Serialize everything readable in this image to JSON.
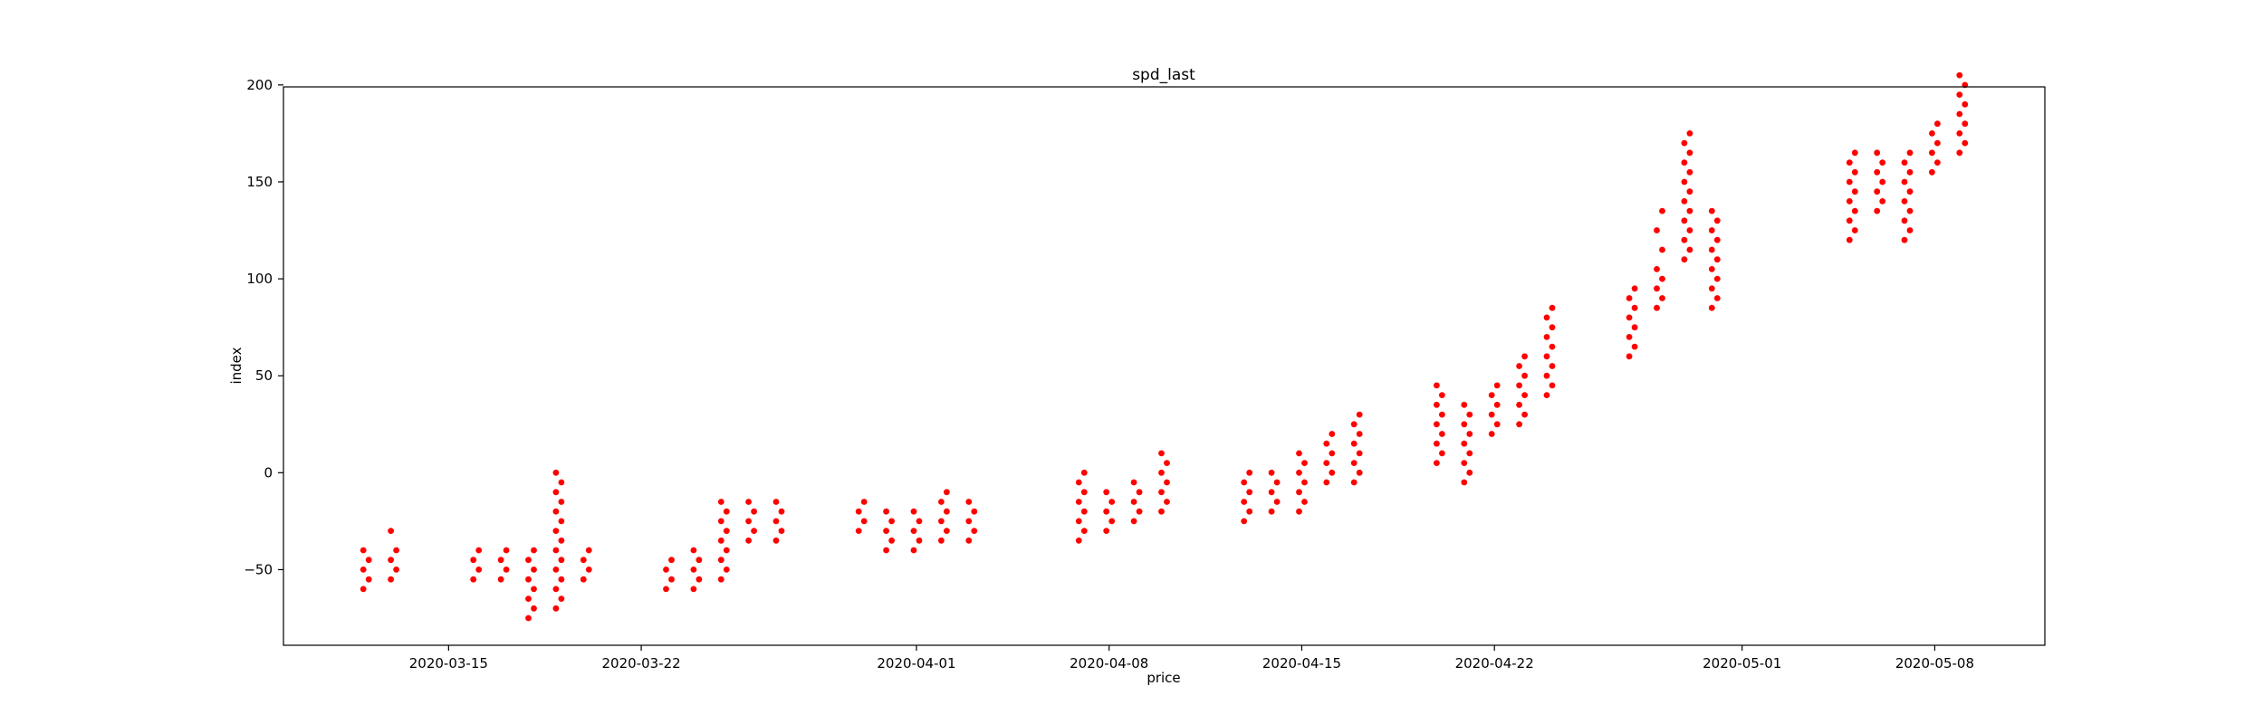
{
  "chart_data": {
    "type": "scatter",
    "title": "spd_last",
    "xlabel": "price",
    "ylabel": "index",
    "xlim": [
      "2020-03-09",
      "2020-05-12"
    ],
    "ylim": [
      -89,
      199
    ],
    "x_ticks": [
      "2020-03-15",
      "2020-03-22",
      "2020-04-01",
      "2020-04-08",
      "2020-04-15",
      "2020-04-22",
      "2020-05-01",
      "2020-05-08"
    ],
    "y_ticks": [
      -50,
      0,
      50,
      100,
      150,
      200
    ],
    "grid": false,
    "marker_color": "#ff0000",
    "series": [
      {
        "points": [
          {
            "x": "2020-03-12",
            "values": [
              -60,
              -55,
              -50,
              -45,
              -40
            ]
          },
          {
            "x": "2020-03-13",
            "values": [
              -55,
              -50,
              -45,
              -40,
              -30
            ]
          },
          {
            "x": "2020-03-16",
            "values": [
              -55,
              -50,
              -45,
              -40
            ]
          },
          {
            "x": "2020-03-17",
            "values": [
              -55,
              -50,
              -45,
              -40
            ]
          },
          {
            "x": "2020-03-18",
            "values": [
              -75,
              -70,
              -65,
              -60,
              -55,
              -50,
              -45,
              -40
            ]
          },
          {
            "x": "2020-03-19",
            "values": [
              -70,
              -65,
              -60,
              -55,
              -50,
              -45,
              -40,
              -35,
              -30,
              -25,
              -20,
              -15,
              -10,
              -5,
              0
            ]
          },
          {
            "x": "2020-03-20",
            "values": [
              -55,
              -50,
              -45,
              -40
            ]
          },
          {
            "x": "2020-03-23",
            "values": [
              -60,
              -55,
              -50,
              -45
            ]
          },
          {
            "x": "2020-03-24",
            "values": [
              -60,
              -55,
              -50,
              -45,
              -40
            ]
          },
          {
            "x": "2020-03-25",
            "values": [
              -55,
              -50,
              -45,
              -40,
              -35,
              -30,
              -25,
              -20,
              -15
            ]
          },
          {
            "x": "2020-03-26",
            "values": [
              -35,
              -30,
              -25,
              -20,
              -15
            ]
          },
          {
            "x": "2020-03-27",
            "values": [
              -35,
              -30,
              -25,
              -20,
              -15
            ]
          },
          {
            "x": "2020-03-30",
            "values": [
              -30,
              -25,
              -20,
              -15
            ]
          },
          {
            "x": "2020-03-31",
            "values": [
              -40,
              -35,
              -30,
              -25,
              -20
            ]
          },
          {
            "x": "2020-04-01",
            "values": [
              -40,
              -35,
              -30,
              -25,
              -20
            ]
          },
          {
            "x": "2020-04-02",
            "values": [
              -35,
              -30,
              -25,
              -20,
              -15,
              -10
            ]
          },
          {
            "x": "2020-04-03",
            "values": [
              -35,
              -30,
              -25,
              -20,
              -15
            ]
          },
          {
            "x": "2020-04-07",
            "values": [
              -35,
              -30,
              -25,
              -20,
              -15,
              -10,
              -5,
              0
            ]
          },
          {
            "x": "2020-04-08",
            "values": [
              -30,
              -25,
              -20,
              -15,
              -10
            ]
          },
          {
            "x": "2020-04-09",
            "values": [
              -25,
              -20,
              -15,
              -10,
              -5
            ]
          },
          {
            "x": "2020-04-10",
            "values": [
              -20,
              -15,
              -10,
              -5,
              0,
              5,
              10
            ]
          },
          {
            "x": "2020-04-13",
            "values": [
              -25,
              -20,
              -15,
              -10,
              -5,
              0
            ]
          },
          {
            "x": "2020-04-14",
            "values": [
              -20,
              -15,
              -10,
              -5,
              0
            ]
          },
          {
            "x": "2020-04-15",
            "values": [
              -20,
              -15,
              -10,
              -5,
              0,
              5,
              10
            ]
          },
          {
            "x": "2020-04-16",
            "values": [
              -5,
              0,
              5,
              10,
              15,
              20
            ]
          },
          {
            "x": "2020-04-17",
            "values": [
              -5,
              0,
              5,
              10,
              15,
              20,
              25,
              30
            ]
          },
          {
            "x": "2020-04-20",
            "values": [
              5,
              10,
              15,
              20,
              25,
              30,
              35,
              40,
              45
            ]
          },
          {
            "x": "2020-04-21",
            "values": [
              -5,
              0,
              5,
              10,
              15,
              20,
              25,
              30,
              35
            ]
          },
          {
            "x": "2020-04-22",
            "values": [
              20,
              25,
              30,
              35,
              40,
              45
            ]
          },
          {
            "x": "2020-04-23",
            "values": [
              25,
              30,
              35,
              40,
              45,
              50,
              55,
              60
            ]
          },
          {
            "x": "2020-04-24",
            "values": [
              40,
              45,
              50,
              55,
              60,
              65,
              70,
              75,
              80,
              85
            ]
          },
          {
            "x": "2020-04-27",
            "values": [
              60,
              65,
              70,
              75,
              80,
              85,
              90,
              95
            ]
          },
          {
            "x": "2020-04-28",
            "values": [
              85,
              90,
              95,
              100,
              105,
              115,
              125,
              135
            ]
          },
          {
            "x": "2020-04-29",
            "values": [
              110,
              115,
              120,
              125,
              130,
              135,
              140,
              145,
              150,
              155,
              160,
              165,
              170,
              175
            ]
          },
          {
            "x": "2020-04-30",
            "values": [
              85,
              90,
              95,
              100,
              105,
              110,
              115,
              120,
              125,
              130,
              135
            ]
          },
          {
            "x": "2020-05-05",
            "values": [
              120,
              125,
              130,
              135,
              140,
              145,
              150,
              155,
              160,
              165
            ]
          },
          {
            "x": "2020-05-06",
            "values": [
              135,
              140,
              145,
              150,
              155,
              160,
              165
            ]
          },
          {
            "x": "2020-05-07",
            "values": [
              120,
              125,
              130,
              135,
              140,
              145,
              150,
              155,
              160,
              165
            ]
          },
          {
            "x": "2020-05-08",
            "values": [
              155,
              160,
              165,
              170,
              175,
              180
            ]
          },
          {
            "x": "2020-05-09",
            "values": [
              165,
              170,
              175,
              180,
              185,
              190,
              195,
              200,
              205
            ]
          }
        ]
      }
    ]
  }
}
